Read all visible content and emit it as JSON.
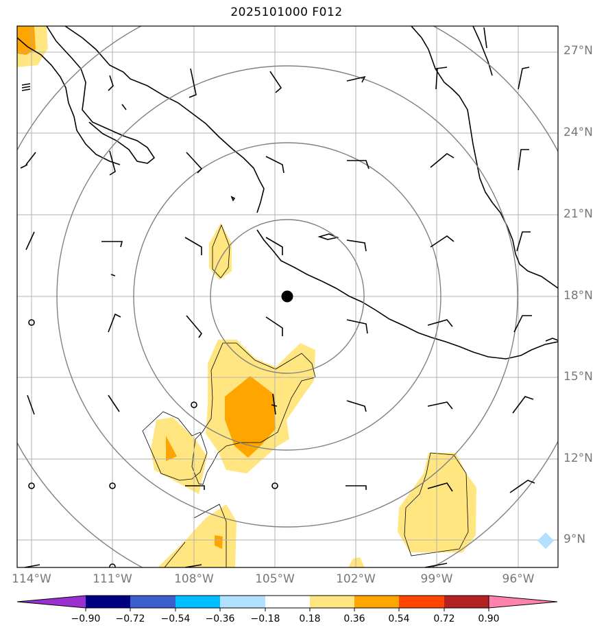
{
  "title": "2025101000 F012",
  "lat_labels": [
    "27°N",
    "24°N",
    "21°N",
    "18°N",
    "15°N",
    "12°N",
    "9°N"
  ],
  "lon_labels": [
    "114°W",
    "111°W",
    "108°W",
    "105°W",
    "102°W",
    "99°W",
    "96°W"
  ],
  "colorbar": {
    "labels": [
      "−0.90",
      "−0.72",
      "−0.54",
      "−0.36",
      "−0.18",
      "0.18",
      "0.36",
      "0.54",
      "0.72",
      "0.90"
    ],
    "colors": [
      "#9b30d0",
      "#000080",
      "#3a5fcd",
      "#00bfff",
      "#b0e2ff",
      "#ffffff",
      "#ffe680",
      "#ffa500",
      "#ff4500",
      "#b22222",
      "#ff82ab"
    ]
  },
  "colors": {
    "fill_low": "#ffe680",
    "fill_mid": "#ffa500",
    "range_rings": "#808080",
    "grid": "#b0b0b0",
    "coast": "#000000",
    "center_marker": "#000000"
  }
}
